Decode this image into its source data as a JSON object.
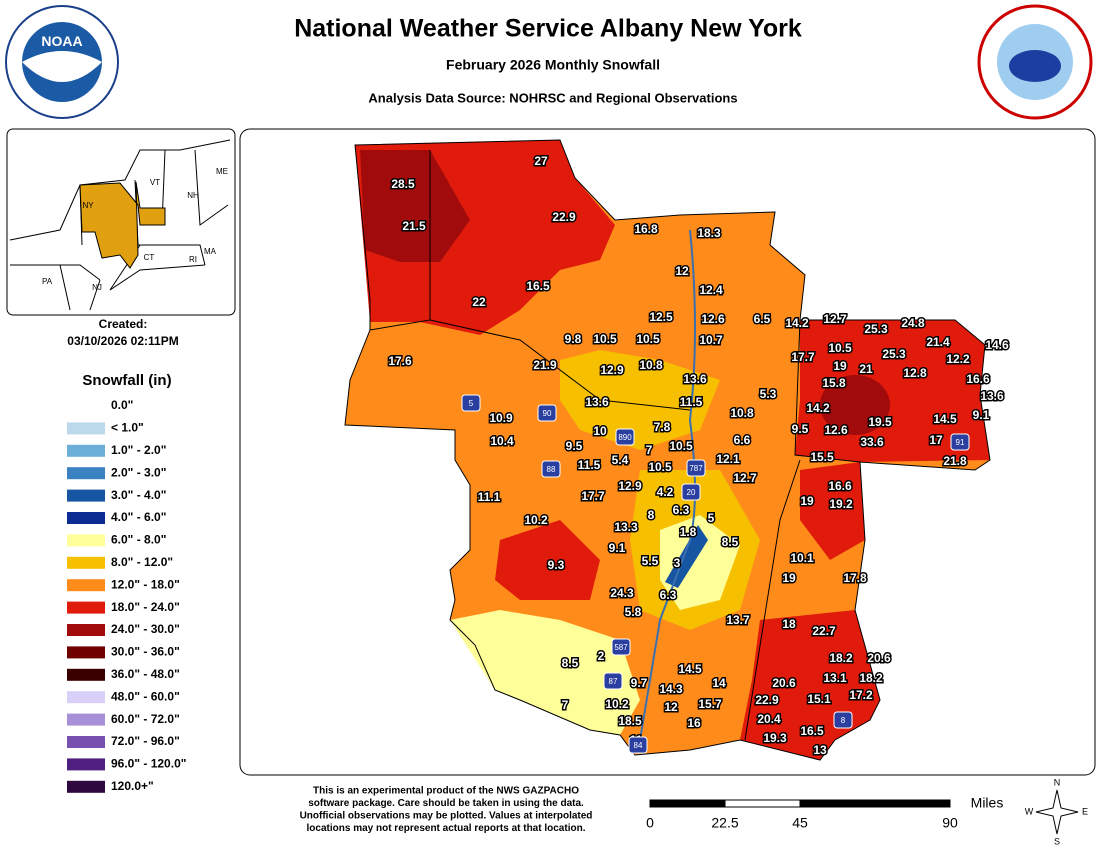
{
  "header": {
    "title": "National Weather Service Albany New York",
    "subtitle": "February 2026 Monthly Snowfall",
    "source": "Analysis Data Source: NOHRSC and Regional Observations"
  },
  "inset": {
    "labels": [
      "VT",
      "NH",
      "ME",
      "NY",
      "MA",
      "CT",
      "RI",
      "PA",
      "NJ"
    ]
  },
  "created": {
    "label": "Created:",
    "date": "03/10/2026 02:11PM"
  },
  "legend": {
    "title": "Snowfall (in)",
    "items": [
      {
        "label": "0.0\"",
        "color": "#ffffff"
      },
      {
        "label": "< 1.0\"",
        "color": "#bcd9ec"
      },
      {
        "label": "1.0\" - 2.0\"",
        "color": "#6bafd9"
      },
      {
        "label": "2.0\" - 3.0\"",
        "color": "#3b82c2"
      },
      {
        "label": "3.0\" - 4.0\"",
        "color": "#1655a2"
      },
      {
        "label": "4.0\" - 6.0\"",
        "color": "#0c2b92"
      },
      {
        "label": "6.0\" - 8.0\"",
        "color": "#ffff99"
      },
      {
        "label": "8.0\" - 12.0\"",
        "color": "#f6bf00"
      },
      {
        "label": "12.0\" - 18.0\"",
        "color": "#ff8c1a"
      },
      {
        "label": "18.0\" - 24.0\"",
        "color": "#e01b0b"
      },
      {
        "label": "24.0\" - 30.0\"",
        "color": "#a10b0b"
      },
      {
        "label": "30.0\" - 36.0\"",
        "color": "#6e0000"
      },
      {
        "label": "36.0\" - 48.0\"",
        "color": "#3a0000"
      },
      {
        "label": "48.0\" - 60.0\"",
        "color": "#d8d0f8"
      },
      {
        "label": "60.0\" - 72.0\"",
        "color": "#a890d8"
      },
      {
        "label": "72.0\" - 96.0\"",
        "color": "#7850b0"
      },
      {
        "label": "96.0\" - 120.0\"",
        "color": "#502080"
      },
      {
        "label": "120.0+\"",
        "color": "#300840"
      }
    ]
  },
  "map": {
    "values": [
      28.5,
      27,
      21.5,
      22.9,
      16.8,
      18.3,
      12,
      22,
      16.5,
      12.4,
      12.5,
      12.6,
      6.5,
      14.2,
      12.7,
      25.3,
      24.8,
      21.4,
      14.6,
      17.6,
      9.8,
      10.5,
      10.5,
      10.7,
      10.5,
      25.3,
      12.2,
      17.7,
      19,
      21,
      12.8,
      16.6,
      21.9,
      12.9,
      10.8,
      13.6,
      15.8,
      13.6,
      5.3,
      13.6,
      11.5,
      10.9,
      10.8,
      14.2,
      19.5,
      14.5,
      9.1,
      10,
      7.8,
      9.5,
      12.6,
      10.4,
      9.5,
      7,
      10.5,
      6.6,
      17,
      33.6,
      5.4,
      11.5,
      10.5,
      12.1,
      15.5,
      21.8,
      12.7,
      16.6,
      11.1,
      17.7,
      12.9,
      4.2,
      19,
      19.2,
      6.3,
      5,
      10.2,
      8,
      13.3,
      1.8,
      8.5,
      9.1,
      10.1,
      5.5,
      3,
      9.3,
      19,
      17.8,
      24.3,
      6.3,
      5.8,
      13.7,
      18,
      22.7,
      8.5,
      2,
      18.2,
      20.6,
      14.5,
      14,
      13.1,
      18.2,
      9.7,
      20.6,
      17.2,
      14.3,
      15.1,
      10.2,
      22.9,
      12,
      15.7,
      7,
      20.4,
      18.5,
      16,
      16.5,
      19.3,
      11,
      13
    ],
    "highways": [
      "5",
      "90",
      "890",
      "88",
      "787",
      "20",
      "91",
      "587",
      "87",
      "84",
      "8"
    ]
  },
  "footer": {
    "disclaimer": [
      "This is an experimental product of the NWS GAZPACHO",
      "software package. Care should be taken in using the data.",
      "Unofficial observations may be plotted. Values at interpolated",
      "locations may not represent actual reports at that location."
    ],
    "scale": {
      "unit": "Miles",
      "ticks": [
        0,
        22.5,
        45,
        90
      ]
    }
  },
  "compass": [
    "N",
    "E",
    "S",
    "W"
  ]
}
